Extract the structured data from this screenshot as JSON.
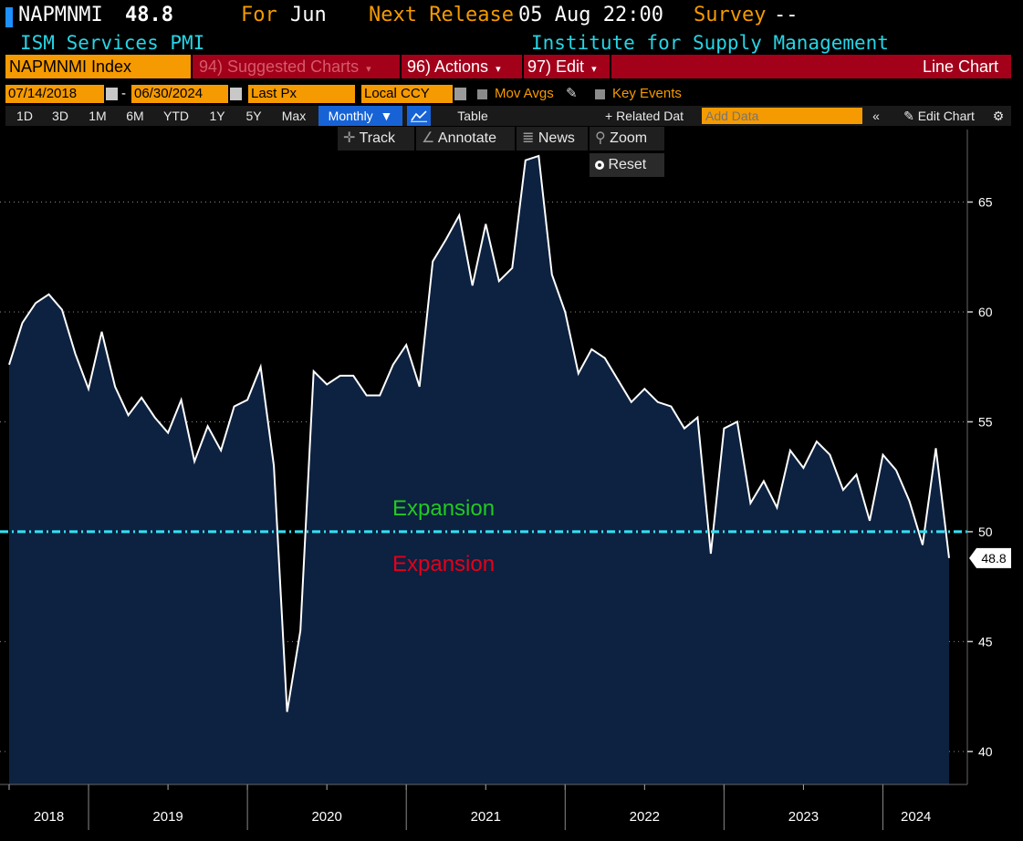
{
  "header": {
    "ticker": "NAPMNMI",
    "last_value": "48.8",
    "for_label": "For",
    "for_period": "Jun",
    "next_release_label": "Next Release",
    "next_release_value": "05 Aug 22:00",
    "survey_label": "Survey",
    "survey_value": "--",
    "name": "ISM Services PMI",
    "source": "Institute for Supply Management"
  },
  "toolbar": {
    "security": "NAPMNMI Index",
    "suggested_charts": "94) Suggested Charts",
    "actions": "96) Actions",
    "edit": "97) Edit",
    "chart_type": "Line Chart"
  },
  "controls": {
    "start_date": "07/14/2018",
    "end_date": "06/30/2024",
    "date_separator": "-",
    "field": "Last Px",
    "currency": "Local CCY",
    "mov_avgs": "Mov Avgs",
    "key_events": "Key Events"
  },
  "range_buttons": [
    "1D",
    "3D",
    "1M",
    "6M",
    "YTD",
    "1Y",
    "5Y",
    "Max"
  ],
  "frequency": "Monthly",
  "table_label": "Table",
  "related_data": "Related Dat",
  "add_data_placeholder": "Add Data",
  "edit_chart": "Edit Chart",
  "chart_tools": {
    "track": "Track",
    "annotate": "Annotate",
    "news": "News",
    "zoom": "Zoom",
    "reset": "Reset"
  },
  "colors": {
    "accent_orange": "#f59a00",
    "header_cyan": "#27d5e6",
    "red_bar": "#a3001a",
    "area_fill": "#0d2140",
    "line": "#ffffff",
    "threshold": "#2fe3f5",
    "upper_label": "#22c922",
    "lower_label": "#e3001b"
  },
  "chart_data": {
    "type": "area",
    "series": [
      {
        "values": [
          57.6,
          59.5,
          60.4,
          60.8,
          60.1,
          58.1,
          56.5,
          59.1,
          56.6,
          55.3,
          56.1,
          55.2,
          54.5,
          56.0,
          53.2,
          54.8,
          53.7,
          55.7,
          56.0,
          57.5,
          53.0,
          41.8,
          45.5,
          57.3,
          56.7,
          57.1,
          57.1,
          56.2,
          56.2,
          57.6,
          58.5,
          56.6,
          62.3,
          63.3,
          64.4,
          61.2,
          64.0,
          61.4,
          62.0,
          66.9,
          67.1,
          61.7,
          60.0,
          57.2,
          58.3,
          57.9,
          56.9,
          55.9,
          56.5,
          55.9,
          55.7,
          54.7,
          55.2,
          49.0,
          54.7,
          55.0,
          51.3,
          52.3,
          51.1,
          53.7,
          52.9,
          54.1,
          53.5,
          51.9,
          52.6,
          50.5,
          53.5,
          52.8,
          51.4,
          49.4,
          53.8,
          48.8
        ]
      }
    ],
    "x_start": "2018-07",
    "x_end": "2024-06",
    "frequency": "monthly",
    "xticks": [
      "2018",
      "2019",
      "2020",
      "2021",
      "2022",
      "2023",
      "2024"
    ],
    "yticks": [
      40,
      45,
      50,
      55,
      60,
      65
    ],
    "ylim": [
      38.5,
      68.3
    ],
    "threshold": {
      "value": 50,
      "label_above": "Expansion",
      "label_below": "Expansion"
    },
    "last_value_label": "48.8",
    "legend": "none",
    "grid": "horizontal dotted"
  }
}
